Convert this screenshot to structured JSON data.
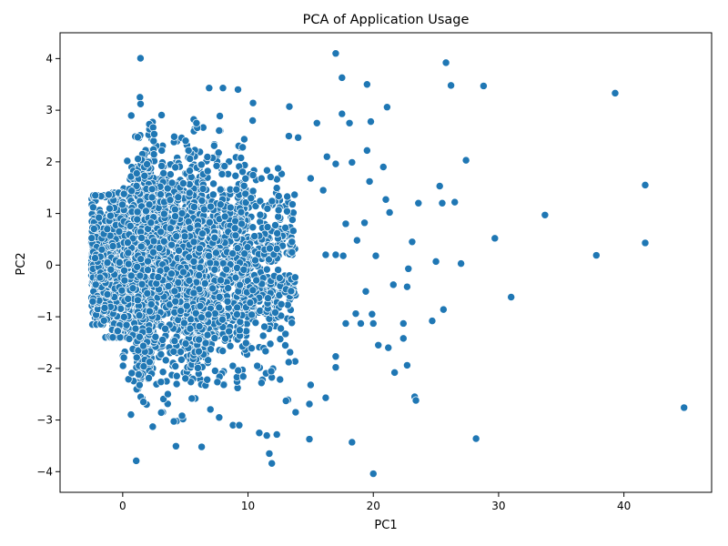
{
  "chart_data": {
    "type": "scatter",
    "title": "PCA of Application Usage",
    "xlabel": "PC1",
    "ylabel": "PC2",
    "xlim": [
      -5,
      47
    ],
    "ylim": [
      -4.4,
      4.5
    ],
    "xticks": [
      0,
      10,
      20,
      30,
      40
    ],
    "yticks": [
      -4,
      -3,
      -2,
      -1,
      0,
      1,
      2,
      3,
      4
    ],
    "grid": false,
    "legend": "none",
    "marker_color": "#1f77b4",
    "marker_edge_color": "#ffffff",
    "series": [
      {
        "points": [
          [
            17.0,
            4.1
          ],
          [
            25.8,
            3.92
          ],
          [
            17.5,
            3.63
          ],
          [
            19.5,
            3.5
          ],
          [
            26.2,
            3.48
          ],
          [
            28.8,
            3.47
          ],
          [
            39.3,
            3.33
          ],
          [
            6.9,
            3.43
          ],
          [
            8.0,
            3.43
          ],
          [
            9.2,
            3.4
          ],
          [
            10.4,
            3.14
          ],
          [
            13.3,
            3.07
          ],
          [
            21.1,
            3.06
          ],
          [
            17.5,
            2.93
          ],
          [
            19.8,
            2.78
          ],
          [
            18.1,
            2.75
          ],
          [
            15.5,
            2.75
          ],
          [
            14.0,
            2.47
          ],
          [
            19.5,
            2.22
          ],
          [
            16.3,
            2.1
          ],
          [
            27.4,
            2.03
          ],
          [
            17.0,
            1.96
          ],
          [
            18.3,
            1.99
          ],
          [
            20.8,
            1.9
          ],
          [
            15.0,
            1.68
          ],
          [
            19.7,
            1.62
          ],
          [
            41.7,
            1.55
          ],
          [
            25.3,
            1.53
          ],
          [
            16.0,
            1.45
          ],
          [
            21.0,
            1.27
          ],
          [
            23.6,
            1.2
          ],
          [
            25.5,
            1.2
          ],
          [
            26.5,
            1.22
          ],
          [
            19.3,
            0.82
          ],
          [
            21.3,
            1.02
          ],
          [
            33.7,
            0.97
          ],
          [
            17.8,
            0.8
          ],
          [
            18.7,
            0.48
          ],
          [
            29.7,
            0.52
          ],
          [
            41.7,
            0.43
          ],
          [
            23.1,
            0.45
          ],
          [
            37.8,
            0.19
          ],
          [
            20.2,
            0.18
          ],
          [
            25.0,
            0.07
          ],
          [
            27.0,
            0.03
          ],
          [
            22.8,
            -0.07
          ],
          [
            16.2,
            0.2
          ],
          [
            17.0,
            0.2
          ],
          [
            17.6,
            0.18
          ],
          [
            21.6,
            -0.38
          ],
          [
            22.7,
            -0.42
          ],
          [
            19.4,
            -0.51
          ],
          [
            31.0,
            -0.62
          ],
          [
            25.6,
            -0.86
          ],
          [
            18.6,
            -0.94
          ],
          [
            19.9,
            -0.95
          ],
          [
            22.4,
            -1.13
          ],
          [
            24.7,
            -1.08
          ],
          [
            17.8,
            -1.13
          ],
          [
            19.0,
            -1.13
          ],
          [
            20.0,
            -1.13
          ],
          [
            22.4,
            -1.42
          ],
          [
            20.4,
            -1.55
          ],
          [
            21.2,
            -1.6
          ],
          [
            17.0,
            -1.77
          ],
          [
            21.7,
            -2.08
          ],
          [
            17.0,
            -1.98
          ],
          [
            22.7,
            -1.94
          ],
          [
            15.0,
            -2.32
          ],
          [
            23.3,
            -2.55
          ],
          [
            23.4,
            -2.62
          ],
          [
            16.2,
            -2.57
          ],
          [
            14.9,
            -2.69
          ],
          [
            44.8,
            -2.76
          ],
          [
            14.9,
            -3.37
          ],
          [
            18.3,
            -3.43
          ],
          [
            28.2,
            -3.36
          ],
          [
            12.3,
            -3.28
          ],
          [
            11.9,
            -3.84
          ],
          [
            11.7,
            -3.65
          ],
          [
            6.3,
            -3.52
          ],
          [
            20.0,
            -4.04
          ],
          [
            11.5,
            -3.3
          ],
          [
            13.8,
            -2.85
          ],
          [
            10.9,
            -3.25
          ],
          [
            8.8,
            -3.1
          ],
          [
            9.3,
            -3.1
          ],
          [
            7.7,
            -2.95
          ],
          [
            3.2,
            -2.85
          ],
          [
            4.3,
            -3.02
          ]
        ]
      }
    ]
  }
}
